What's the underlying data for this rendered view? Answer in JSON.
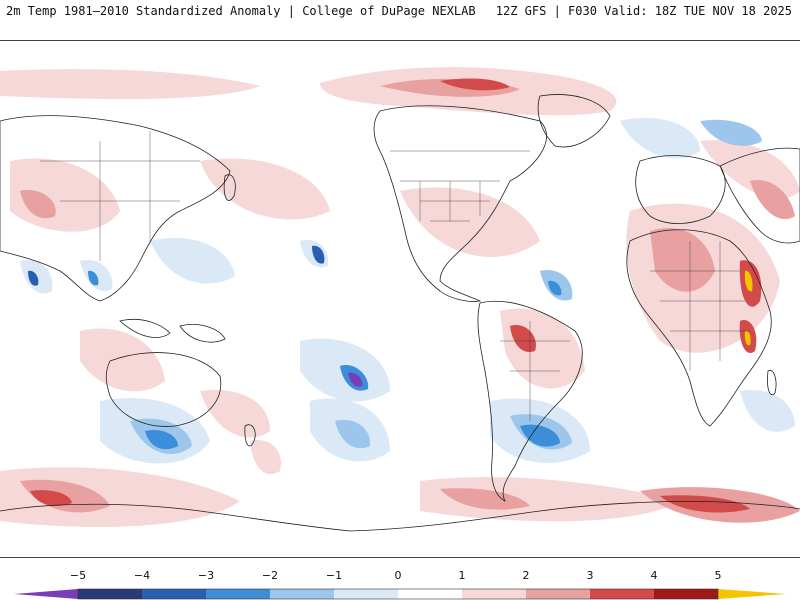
{
  "header": {
    "title": "2m Temp 1981–2010 Standardized Anomaly | College of DuPage NEXLAB",
    "run_info": "12Z GFS | F030 Valid: 18Z TUE NOV 18 2025"
  },
  "map": {
    "variable": "2m temperature standardized anomaly",
    "projection": "global cylindrical, Pacific-centered"
  },
  "legend": {
    "ticks": [
      "−5",
      "−4",
      "−3",
      "−2",
      "−1",
      "0",
      "1",
      "2",
      "3",
      "4",
      "5"
    ],
    "colors": {
      "below_min": "#7a3db8",
      "n5_n4": "#2a3a78",
      "n4_n3": "#2860b0",
      "n3_n2": "#3c8ed8",
      "n2_n1": "#9cc6ec",
      "n1_0": "#dbe9f7",
      "0_1": "#ffffff",
      "1_2": "#f6d8d8",
      "2_3": "#e8a0a0",
      "3_4": "#d24a4a",
      "4_5": "#a01818",
      "above_max": "#f4c400"
    }
  }
}
